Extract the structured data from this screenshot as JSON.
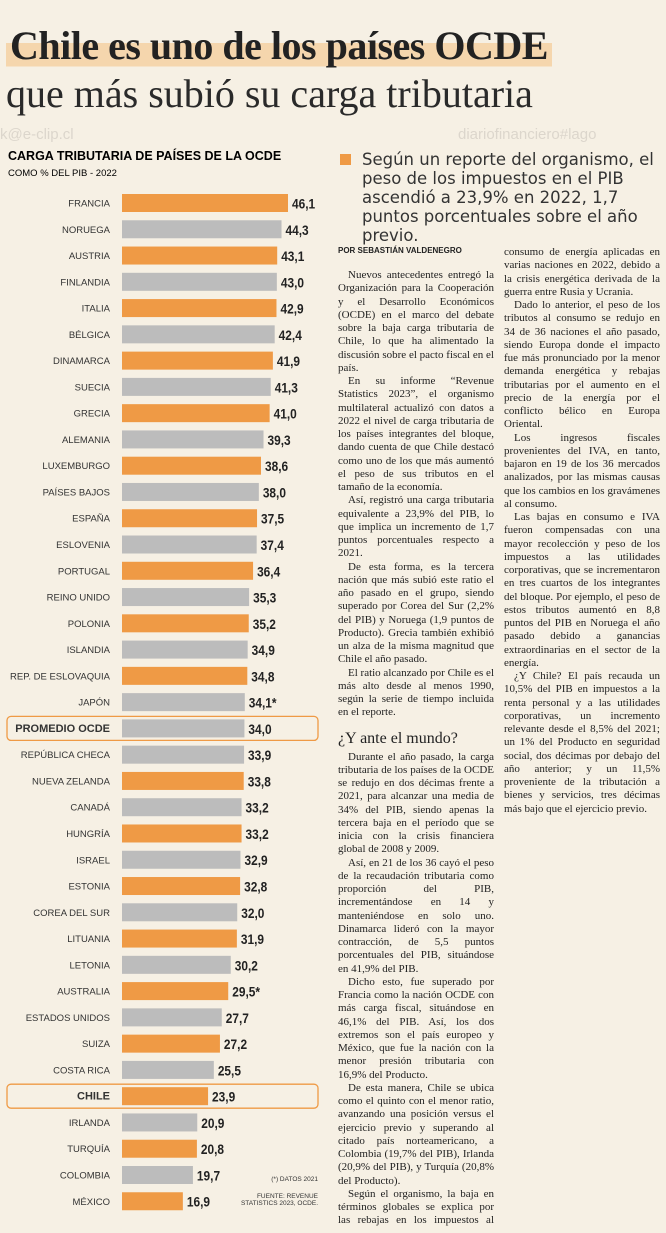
{
  "header": {
    "title_line1": "Chile es uno de los países OCDE",
    "title_line2": "que más subió su carga tributaria"
  },
  "watermarks": [
    "k@e-clip.cl",
    "diariofinanciero#lago"
  ],
  "chart_data": {
    "type": "bar",
    "orientation": "horizontal",
    "title": "CARGA TRIBUTARIA DE PAÍSES DE LA OCDE",
    "subtitle": "COMO % DEL PIB - 2022",
    "categories": [
      "FRANCIA",
      "NORUEGA",
      "AUSTRIA",
      "FINLANDIA",
      "ITALIA",
      "BÉLGICA",
      "DINAMARCA",
      "SUECIA",
      "GRECIA",
      "ALEMANIA",
      "LUXEMBURGO",
      "PAÍSES BAJOS",
      "ESPAÑA",
      "ESLOVENIA",
      "PORTUGAL",
      "REINO UNIDO",
      "POLONIA",
      "ISLANDIA",
      "REP. DE ESLOVAQUIA",
      "JAPÓN",
      "PROMEDIO OCDE",
      "REPÚBLICA CHECA",
      "NUEVA ZELANDA",
      "CANADÁ",
      "HUNGRÍA",
      "ISRAEL",
      "ESTONIA",
      "COREA DEL SUR",
      "LITUANIA",
      "LETONIA",
      "AUSTRALIA",
      "ESTADOS UNIDOS",
      "SUIZA",
      "COSTA RICA",
      "CHILE",
      "IRLANDA",
      "TURQUÍA",
      "COLOMBIA",
      "MÉXICO"
    ],
    "values": [
      46.1,
      44.3,
      43.1,
      43.0,
      42.9,
      42.4,
      41.9,
      41.3,
      41.0,
      39.3,
      38.6,
      38.0,
      37.5,
      37.4,
      36.4,
      35.3,
      35.2,
      34.9,
      34.8,
      34.1,
      34.0,
      33.9,
      33.8,
      33.2,
      33.2,
      32.9,
      32.8,
      32.0,
      31.9,
      30.2,
      29.5,
      27.7,
      27.2,
      25.5,
      23.9,
      20.9,
      20.8,
      19.7,
      16.9
    ],
    "value_labels": [
      "46,1",
      "44,3",
      "43,1",
      "43,0",
      "42,9",
      "42,4",
      "41,9",
      "41,3",
      "41,0",
      "39,3",
      "38,6",
      "38,0",
      "37,5",
      "37,4",
      "36,4",
      "35,3",
      "35,2",
      "34,9",
      "34,8",
      "34,1*",
      "34,0",
      "33,9",
      "33,8",
      "33,2",
      "33,2",
      "32,9",
      "32,8",
      "32,0",
      "31,9",
      "30,2",
      "29,5*",
      "27,7",
      "27,2",
      "25,5",
      "23,9",
      "20,9",
      "20,8",
      "19,7",
      "16,9"
    ],
    "colors": [
      "#ef9a45",
      "#bcbcbc",
      "#ef9a45",
      "#bcbcbc",
      "#ef9a45",
      "#bcbcbc",
      "#ef9a45",
      "#bcbcbc",
      "#ef9a45",
      "#bcbcbc",
      "#ef9a45",
      "#bcbcbc",
      "#ef9a45",
      "#bcbcbc",
      "#ef9a45",
      "#bcbcbc",
      "#ef9a45",
      "#bcbcbc",
      "#ef9a45",
      "#bcbcbc",
      "#bcbcbc",
      "#bcbcbc",
      "#ef9a45",
      "#bcbcbc",
      "#ef9a45",
      "#bcbcbc",
      "#ef9a45",
      "#bcbcbc",
      "#ef9a45",
      "#bcbcbc",
      "#ef9a45",
      "#bcbcbc",
      "#ef9a45",
      "#bcbcbc",
      "#ef9a45",
      "#bcbcbc",
      "#ef9a45",
      "#bcbcbc",
      "#ef9a45"
    ],
    "highlight": [
      20,
      34
    ],
    "highlight_color": "#ef9a45",
    "notes": [
      "(*) DATOS 2021",
      "FUENTE: REVENUE STATISTICS 2023, OCDE."
    ]
  },
  "article": {
    "lede": "Según un reporte del organismo, el peso de los impuestos en el PIB ascendió a 23,9% en 2022, 1,7 puntos porcentuales sobre el año previo.",
    "byline": "POR SEBASTIÁN VALDENEGRO",
    "paragraphs_before": [
      "Nuevos antecedentes entregó la Organización para la Cooperación y el Desarrollo Económicos (OCDE) en el marco del debate sobre la baja carga tributaria de Chile, lo que ha alimentado la discusión sobre el pacto fiscal en el país.",
      "En su informe “Revenue Statistics 2023”, el organismo multilateral actualizó con datos a 2022 el nivel de carga tributaria de los países integrantes del bloque, dando cuenta de que Chile destacó como uno de los que más aumentó el peso de sus tributos en el tamaño de la economía.",
      "Así, registró una carga tributaria equivalente a 23,9% del PIB, lo que implica un incremento de 1,7 puntos porcentuales respecto a 2021.",
      "De esta forma, es la tercera nación que más subió este ratio el año pasado en el grupo, siendo superado por Corea del Sur (2,2% del PIB) y Noruega (1,9 puntos de Producto). Grecia también exhibió un alza de la misma magnitud que Chile el año pasado.",
      "El ratio alcanzado por Chile es el más alto desde al menos 1990, según la serie de tiempo incluida en el reporte."
    ],
    "subhead": "¿Y ante el mundo?",
    "paragraphs_after": [
      "Durante el año pasado, la carga tributaria de los países de la OCDE se redujo en dos décimas frente a 2021, para alcanzar una media de 34% del PIB, siendo apenas la tercera baja en el período que se inicia con la crisis financiera global de 2008 y 2009.",
      "Así, en 21 de los 36 cayó el peso de la recaudación tributaria como proporción del PIB, incrementándose en 14 y manteniéndose en solo uno. Dinamarca lideró con la mayor contracción, de 5,5 puntos porcentuales del PIB, situándose en 41,9% del PIB.",
      "Dicho esto, fue superado por Francia como la nación OCDE con más carga fiscal, situándose en 46,1% del PIB. Así, los dos extremos son el país europeo y México, que fue la nación con la menor presión tributaria con 16,9% del Producto.",
      "De esta manera, Chile se ubica como el quinto con el menor ratio, avanzando una posición versus el ejercicio previo y superando al citado país norteamericano, a Colombia (19,7% del PIB), Irlanda (20,9% del PIB), y Turquía (20,8% del Producto).",
      "Según el organismo, la baja en términos globales se explica por las rebajas en los impuestos al consumo de energía aplicadas en varias naciones en 2022, debido a la crisis energética derivada de la guerra entre Rusia y Ucrania.",
      "Dado lo anterior, el peso de los tributos al consumo se redujo en 34 de 36 naciones el año pasado, siendo Europa donde el impacto fue más pronunciado por la menor demanda energética y rebajas tributarias por el aumento en el precio de la energía por el conflicto bélico en Europa Oriental.",
      "Los ingresos fiscales provenientes del IVA, en tanto, bajaron en 19 de los 36 mercados analizados, por las mismas causas que los cambios en los gravámenes al consumo.",
      "Las bajas en consumo e IVA fueron compensadas con una mayor recolección y peso de los impuestos a las utilidades corporativas, que se incrementaron en tres cuartos de los integrantes del bloque. Por ejemplo, el peso de estos tributos aumentó en 8,8 puntos del PIB en Noruega el año pasado debido a ganancias extraordinarias en el sector de la energía.",
      "¿Y Chile? El país recauda un 10,5% del PIB en impuestos a la renta personal y a las utilidades corporativas, un incremento relevante desde el 8,5% del 2021; un 1% del Producto en seguridad social, dos décimas por debajo del año anterior; y un 11,5% proveniente de la tributación a bienes y servicios, tres décimas más bajo que el ejercicio previo."
    ]
  }
}
